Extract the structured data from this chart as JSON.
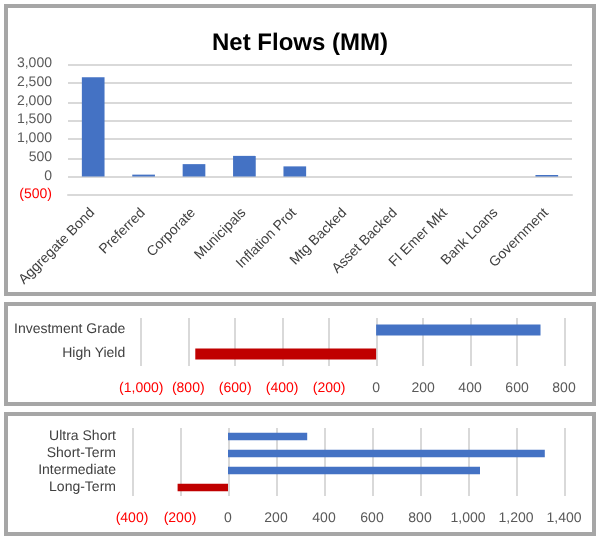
{
  "chart_data": [
    {
      "type": "bar",
      "title": "Net Flows (MM)",
      "categories": [
        "Aggregate Bond",
        "Preferred",
        "Corporate",
        "Municipals",
        "Inflation Prot",
        "Mtg Backed",
        "Asset Backed",
        "FI Emer Mkt",
        "Bank Loans",
        "Government"
      ],
      "values": [
        2650,
        50,
        330,
        550,
        270,
        0,
        0,
        0,
        0,
        40
      ],
      "color": "#4472c4",
      "ylim": [
        -500,
        3000
      ],
      "yticks": [
        {
          "value": -500,
          "label": "(500)"
        },
        0,
        500,
        {
          "value": 1000,
          "label": "1,000"
        },
        {
          "value": 1500,
          "label": "1,500"
        },
        {
          "value": 2000,
          "label": "2,000"
        },
        {
          "value": 2500,
          "label": "2,500"
        },
        {
          "value": 3000,
          "label": "3,000"
        }
      ],
      "grid": "y"
    },
    {
      "type": "bar",
      "orientation": "horizontal",
      "categories": [
        "Investment Grade",
        "High Yield"
      ],
      "values": [
        700,
        -770
      ],
      "colors": [
        "#4472c4",
        "#c00000"
      ],
      "xlim": [
        -1000,
        800
      ],
      "xticks": [
        {
          "value": -1000,
          "label": "(1,000)"
        },
        {
          "value": -800,
          "label": "(800)"
        },
        {
          "value": -600,
          "label": "(600)"
        },
        {
          "value": -400,
          "label": "(400)"
        },
        {
          "value": -200,
          "label": "(200)"
        },
        0,
        200,
        400,
        600,
        800
      ],
      "grid": "x"
    },
    {
      "type": "bar",
      "orientation": "horizontal",
      "categories": [
        "Ultra Short",
        "Short-Term",
        "Intermediate",
        "Long-Term"
      ],
      "values": [
        330,
        1320,
        1050,
        -210
      ],
      "colors": [
        "#4472c4",
        "#4472c4",
        "#4472c4",
        "#c00000"
      ],
      "xlim": [
        -400,
        1400
      ],
      "xticks": [
        {
          "value": -400,
          "label": "(400)"
        },
        {
          "value": -200,
          "label": "(200)"
        },
        0,
        200,
        400,
        600,
        800,
        {
          "value": 1000,
          "label": "1,000"
        },
        {
          "value": 1200,
          "label": "1,200"
        },
        {
          "value": 1400,
          "label": "1,400"
        }
      ],
      "grid": "x"
    }
  ]
}
